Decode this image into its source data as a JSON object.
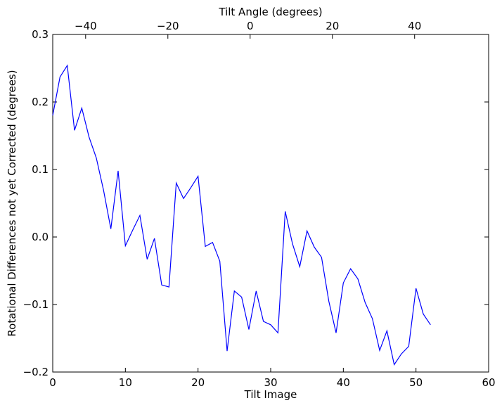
{
  "chart_data": {
    "type": "line",
    "title": "",
    "xlabel": "Tilt Image",
    "ylabel": "Rotational Differences not yet Corrected (degrees)",
    "top_xlabel": "Tilt Angle (degrees)",
    "xlim": [
      0,
      60
    ],
    "ylim": [
      -0.2,
      0.3
    ],
    "top_xlim": [
      -48,
      58
    ],
    "x_ticks": [
      0,
      10,
      20,
      30,
      40,
      50,
      60
    ],
    "x_tick_labels": [
      "0",
      "10",
      "20",
      "30",
      "40",
      "50",
      "60"
    ],
    "y_ticks": [
      -0.2,
      -0.1,
      0.0,
      0.1,
      0.2,
      0.3
    ],
    "y_tick_labels": [
      "−0.2",
      "−0.1",
      "0.0",
      "0.1",
      "0.2",
      "0.3"
    ],
    "top_ticks": [
      -40,
      -20,
      0,
      20,
      40
    ],
    "top_tick_labels": [
      "−40",
      "−20",
      "0",
      "20",
      "40"
    ],
    "grid": false,
    "series": [
      {
        "color": "#0000ff",
        "x": [
          0,
          1,
          2,
          3,
          4,
          5,
          6,
          7,
          8,
          9,
          10,
          11,
          12,
          13,
          14,
          15,
          16,
          17,
          18,
          19,
          20,
          21,
          22,
          23,
          24,
          25,
          26,
          27,
          28,
          29,
          30,
          31,
          32,
          33,
          34,
          35,
          36,
          37,
          38,
          39,
          40,
          41,
          42,
          43,
          44,
          45,
          46,
          47,
          48,
          49,
          50,
          51,
          52
        ],
        "y": [
          0.18,
          0.237,
          0.254,
          0.158,
          0.191,
          0.148,
          0.117,
          0.069,
          0.012,
          0.098,
          -0.013,
          0.01,
          0.032,
          -0.033,
          -0.002,
          -0.071,
          -0.074,
          0.08,
          0.057,
          0.073,
          0.09,
          -0.014,
          -0.008,
          -0.036,
          -0.169,
          -0.08,
          -0.089,
          -0.137,
          -0.08,
          -0.125,
          -0.13,
          -0.142,
          0.038,
          -0.01,
          -0.044,
          0.009,
          -0.015,
          -0.03,
          -0.095,
          -0.142,
          -0.068,
          -0.047,
          -0.062,
          -0.097,
          -0.121,
          -0.168,
          -0.139,
          -0.189,
          -0.173,
          -0.162,
          -0.076,
          -0.114,
          -0.13
        ]
      }
    ]
  }
}
